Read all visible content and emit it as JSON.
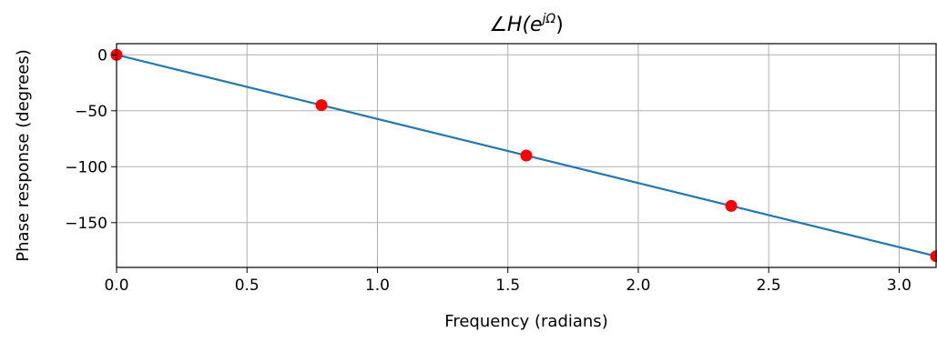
{
  "chart_data": {
    "type": "line",
    "title": "∠H(e^jΩ)",
    "title_parts": {
      "prefix": "∠H(e",
      "superscript": "jΩ",
      "suffix": ")"
    },
    "xlabel": "Frequency (radians)",
    "ylabel": "Phase response (degrees)",
    "xlim": [
      0,
      3.14159
    ],
    "ylim": [
      -190,
      10
    ],
    "xticks": [
      0.0,
      0.5,
      1.0,
      1.5,
      2.0,
      2.5,
      3.0
    ],
    "xtick_labels": [
      "0.0",
      "0.5",
      "1.0",
      "1.5",
      "2.0",
      "2.5",
      "3.0"
    ],
    "yticks": [
      0,
      -50,
      -100,
      -150
    ],
    "ytick_labels": [
      "0",
      "−50",
      "−100",
      "−150"
    ],
    "grid": true,
    "series": [
      {
        "kind": "line",
        "color": "#1f77b4",
        "x": [
          0,
          3.14159
        ],
        "y": [
          0,
          -180
        ]
      },
      {
        "kind": "markers",
        "color": "#ff0000",
        "x": [
          0,
          0.7854,
          1.5708,
          2.3562,
          3.14159
        ],
        "y": [
          0,
          -45,
          -90,
          -135,
          -180
        ]
      }
    ]
  }
}
